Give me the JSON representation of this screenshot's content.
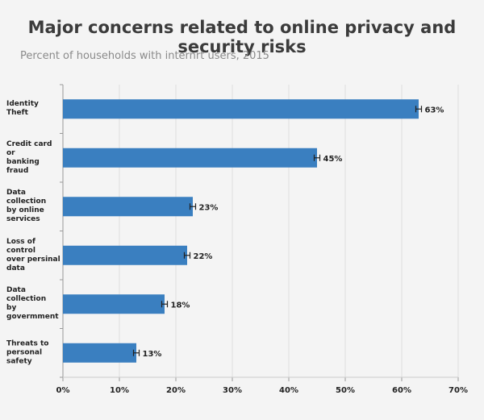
{
  "chart_data": {
    "type": "bar",
    "orientation": "horizontal",
    "title": "Major concerns related to online privacy and security risks",
    "subtitle": "Percent of households with internrt users, 2015",
    "categories": [
      "Identity\nTheft",
      "Credit card or\nbanking fraud",
      "Data collection\nby online\nservices",
      "Loss of control\nover persinal\ndata",
      "Data collection\nby govermment",
      "Threats to\npersonal safety"
    ],
    "values": [
      63,
      45,
      23,
      22,
      18,
      13
    ],
    "value_labels": [
      "63%",
      "45%",
      "23%",
      "22%",
      "18%",
      "13%"
    ],
    "errors": [
      0.5,
      0.5,
      0.5,
      0.5,
      0.5,
      0.5
    ],
    "color": "#3a7fc0",
    "xlim": [
      0,
      70
    ],
    "xticks": [
      {
        "value": 0,
        "label": "0%"
      },
      {
        "value": 10,
        "label": "10%"
      },
      {
        "value": 20,
        "label": "20%"
      },
      {
        "value": 30,
        "label": "30%"
      },
      {
        "value": 40,
        "label": "40%"
      },
      {
        "value": 50,
        "label": "50%"
      },
      {
        "value": 60,
        "label": "60%"
      },
      {
        "value": 70,
        "label": "70%"
      }
    ],
    "grid": true
  }
}
